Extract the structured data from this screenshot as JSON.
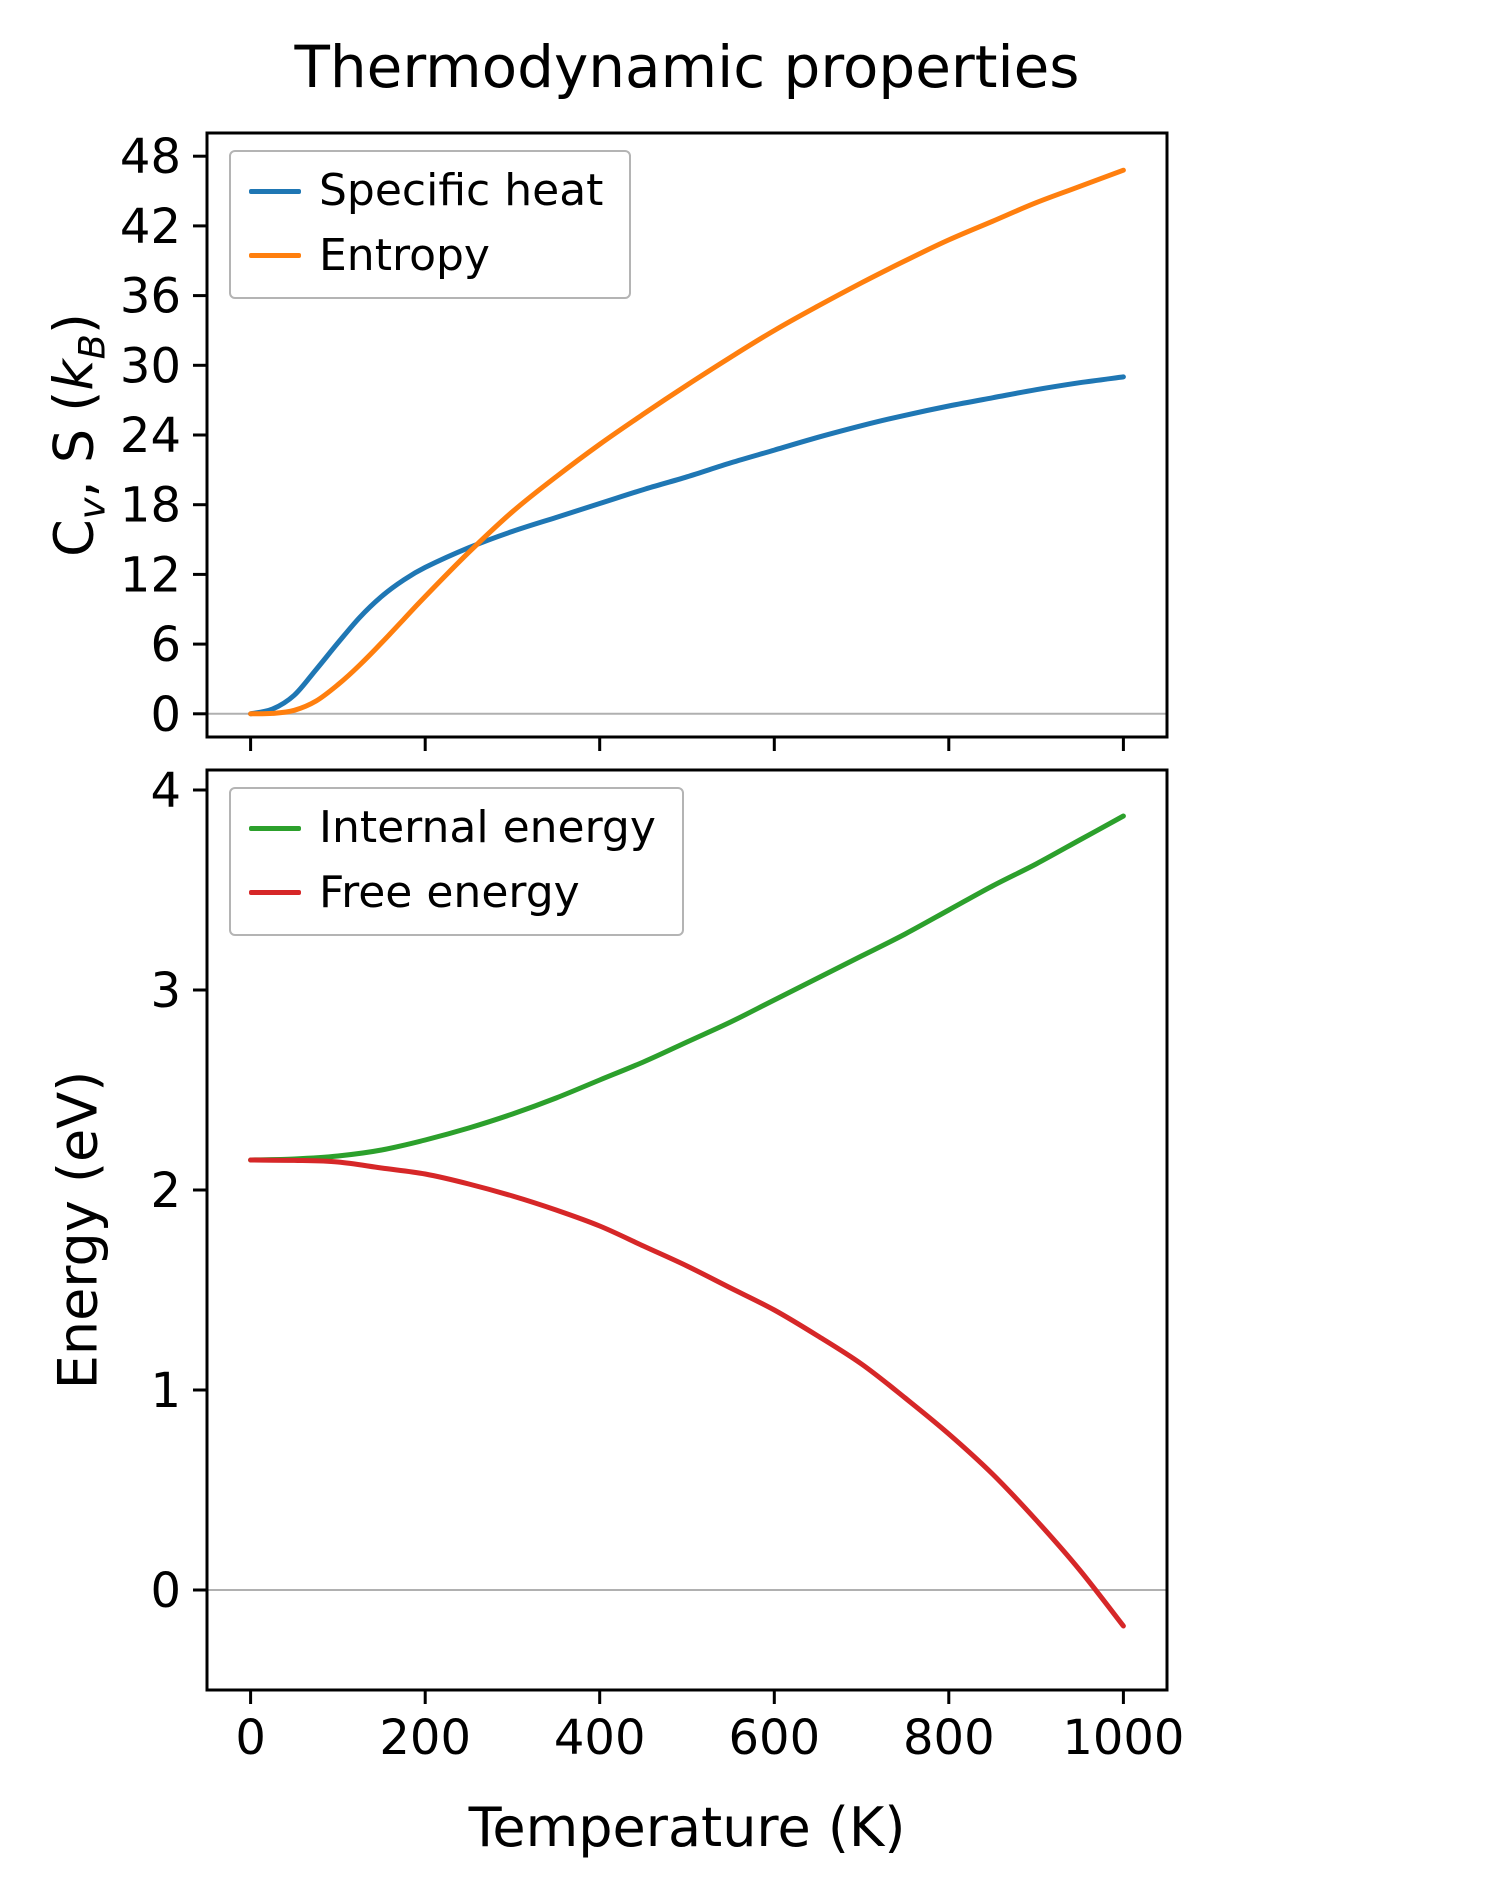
{
  "figure": {
    "title": "Thermodynamic properties",
    "xlabel": "Temperature (K)",
    "background": "#ffffff"
  },
  "chart_data": [
    {
      "type": "line",
      "title": "Thermodynamic properties",
      "ylabel": "Cv, S (kB)",
      "ylabel_parts": {
        "sym1": "C",
        "sub1": "v",
        "mid": ", S (",
        "sym2": "k",
        "sub2": "B",
        "close": ")"
      },
      "xlabel": "Temperature (K)",
      "xlim": [
        -50,
        1050
      ],
      "ylim": [
        -2,
        50
      ],
      "xticks": [
        0,
        200,
        400,
        600,
        800,
        1000
      ],
      "yticks": [
        0,
        6,
        12,
        18,
        24,
        30,
        36,
        42,
        48
      ],
      "grid": false,
      "zero_line": true,
      "zero_line_color": "#b0b0b0",
      "legend_position": "upper left",
      "x": [
        0,
        25,
        50,
        75,
        100,
        125,
        150,
        175,
        200,
        250,
        300,
        350,
        400,
        450,
        500,
        550,
        600,
        650,
        700,
        750,
        800,
        850,
        900,
        950,
        1000
      ],
      "series": [
        {
          "name": "Specific heat",
          "color": "#1f77b4",
          "values": [
            0,
            0.4,
            1.6,
            3.8,
            6.1,
            8.3,
            10.1,
            11.5,
            12.6,
            14.3,
            15.7,
            16.9,
            18.1,
            19.3,
            20.4,
            21.6,
            22.7,
            23.8,
            24.8,
            25.7,
            26.5,
            27.2,
            27.9,
            28.5,
            29.0
          ]
        },
        {
          "name": "Entropy",
          "color": "#ff7f0e",
          "values": [
            0,
            0.03,
            0.3,
            1.1,
            2.5,
            4.2,
            6.1,
            8.1,
            10.1,
            13.9,
            17.4,
            20.4,
            23.2,
            25.8,
            28.3,
            30.7,
            33.0,
            35.1,
            37.1,
            39.0,
            40.8,
            42.4,
            44.0,
            45.4,
            46.8
          ]
        }
      ]
    },
    {
      "type": "line",
      "title": "",
      "ylabel": "Energy (eV)",
      "xlabel": "Temperature (K)",
      "xlim": [
        -50,
        1050
      ],
      "ylim": [
        -0.5,
        4.1
      ],
      "xticks": [
        0,
        200,
        400,
        600,
        800,
        1000
      ],
      "yticks": [
        0,
        1,
        2,
        3,
        4
      ],
      "grid": false,
      "zero_line": true,
      "zero_line_color": "#b0b0b0",
      "legend_position": "upper left",
      "x": [
        0,
        50,
        100,
        150,
        200,
        250,
        300,
        350,
        400,
        450,
        500,
        550,
        600,
        650,
        700,
        750,
        800,
        850,
        900,
        950,
        1000
      ],
      "series": [
        {
          "name": "Internal energy",
          "color": "#2ca02c",
          "values": [
            2.15,
            2.155,
            2.17,
            2.2,
            2.25,
            2.31,
            2.38,
            2.46,
            2.55,
            2.64,
            2.74,
            2.84,
            2.95,
            3.06,
            3.17,
            3.28,
            3.4,
            3.52,
            3.63,
            3.75,
            3.87
          ]
        },
        {
          "name": "Free energy",
          "color": "#d62728",
          "values": [
            2.15,
            2.148,
            2.14,
            2.11,
            2.08,
            2.03,
            1.97,
            1.9,
            1.82,
            1.72,
            1.62,
            1.51,
            1.4,
            1.27,
            1.13,
            0.96,
            0.78,
            0.58,
            0.35,
            0.1,
            -0.18
          ]
        }
      ]
    }
  ]
}
